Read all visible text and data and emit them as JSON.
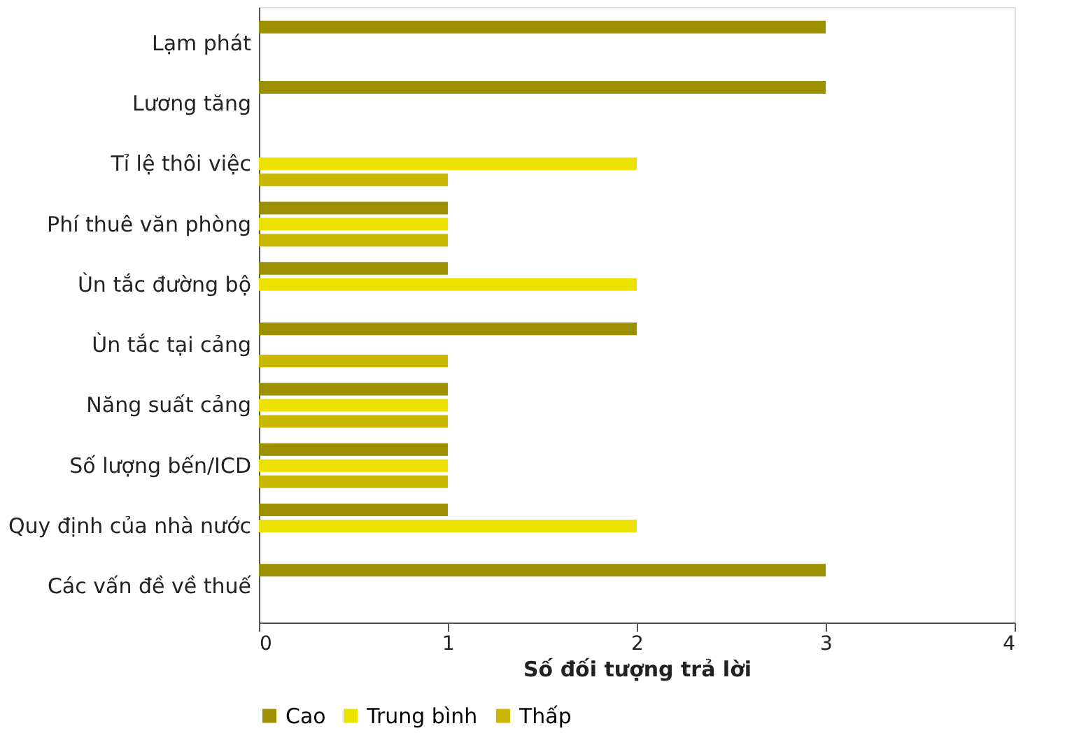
{
  "chart_data": {
    "type": "bar",
    "orientation": "horizontal",
    "xlabel": "Số đối tượng trả lời",
    "categories": [
      "Lạm phát",
      "Lương tăng",
      "Tỉ lệ thôi việc",
      "Phí thuê văn phòng",
      "Ùn tắc đường bộ",
      "Ùn tắc tại cảng",
      "Năng suất cảng",
      "Số lượng bến/ICD",
      "Quy định của nhà nước",
      "Các vấn đề về thuế"
    ],
    "series": [
      {
        "name": "Cao",
        "color": "#9c9000",
        "values": [
          3,
          3,
          0,
          1,
          1,
          2,
          1,
          1,
          1,
          3
        ]
      },
      {
        "name": "Trung bình",
        "color": "#ece100",
        "values": [
          0,
          0,
          2,
          1,
          2,
          0,
          1,
          1,
          2,
          0
        ]
      },
      {
        "name": "Thấp",
        "color": "#c9b800",
        "values": [
          0,
          0,
          1,
          1,
          0,
          1,
          1,
          1,
          0,
          0
        ]
      }
    ],
    "xlim": [
      0,
      4
    ],
    "xticks": [
      0,
      1,
      2,
      3,
      4
    ],
    "grid": false,
    "legend": "bottom"
  }
}
